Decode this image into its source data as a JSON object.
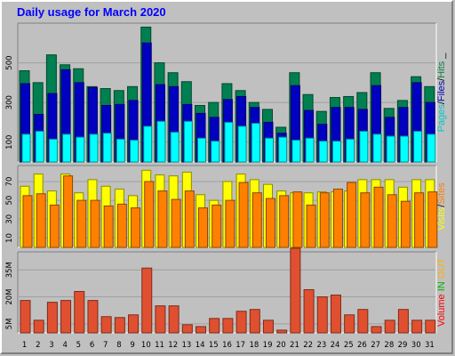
{
  "chart_data": [
    {
      "type": "bar",
      "title": "Daily usage for March 2020",
      "panel": "top",
      "categories": [
        "1",
        "2",
        "3",
        "4",
        "5",
        "6",
        "7",
        "8",
        "9",
        "10",
        "11",
        "12",
        "13",
        "14",
        "15",
        "16",
        "17",
        "18",
        "19",
        "20",
        "21",
        "22",
        "23",
        "24",
        "25",
        "26",
        "27",
        "28",
        "29",
        "30",
        "31"
      ],
      "y_ticks": [
        "100",
        "300",
        "500"
      ],
      "ylim": [
        0,
        700
      ],
      "legend_labels": [
        "Pages",
        "/",
        "Files",
        "/",
        "Hits",
        "_"
      ],
      "legend_colors": [
        "#00c8c8",
        "#000000",
        "#0000c0",
        "#000000",
        "#008040",
        "#000000"
      ],
      "series": [
        {
          "name": "Hits",
          "color": "#008050",
          "values": [
            460,
            400,
            540,
            490,
            470,
            380,
            370,
            360,
            380,
            680,
            500,
            450,
            405,
            285,
            300,
            395,
            360,
            300,
            265,
            175,
            450,
            340,
            255,
            325,
            330,
            350,
            450,
            270,
            310,
            430,
            380
          ]
        },
        {
          "name": "Files",
          "color": "#0000c0",
          "values": [
            395,
            240,
            345,
            465,
            400,
            375,
            285,
            290,
            310,
            600,
            390,
            380,
            290,
            245,
            225,
            315,
            330,
            275,
            200,
            145,
            385,
            260,
            190,
            275,
            275,
            265,
            385,
            225,
            275,
            400,
            300
          ]
        },
        {
          "name": "Pages",
          "color": "#00ffff",
          "values": [
            140,
            155,
            115,
            140,
            125,
            140,
            145,
            115,
            110,
            180,
            205,
            150,
            205,
            120,
            105,
            200,
            180,
            195,
            120,
            125,
            110,
            120,
            105,
            105,
            115,
            155,
            140,
            130,
            130,
            155,
            140
          ]
        }
      ]
    },
    {
      "type": "bar",
      "panel": "middle",
      "categories": [
        "1",
        "2",
        "3",
        "4",
        "5",
        "6",
        "7",
        "8",
        "9",
        "10",
        "11",
        "12",
        "13",
        "14",
        "15",
        "16",
        "17",
        "18",
        "19",
        "20",
        "21",
        "22",
        "23",
        "24",
        "25",
        "26",
        "27",
        "28",
        "29",
        "30",
        "31"
      ],
      "y_ticks": [
        "10",
        "30",
        "50",
        "70"
      ],
      "ylim": [
        0,
        87
      ],
      "legend_labels": [
        "Visits",
        "/",
        "Sites"
      ],
      "legend_colors": [
        "#ffff00",
        "#000000",
        "#ff8000"
      ],
      "series": [
        {
          "name": "Visits",
          "color": "#ffff00",
          "values": [
            65,
            78,
            60,
            78,
            58,
            72,
            65,
            62,
            55,
            82,
            77,
            76,
            80,
            56,
            50,
            70,
            78,
            72,
            67,
            60,
            58,
            58,
            59,
            59,
            60,
            72,
            72,
            72,
            64,
            72,
            72
          ]
        },
        {
          "name": "Sites",
          "color": "#ff8000",
          "values": [
            55,
            57,
            45,
            76,
            50,
            50,
            44,
            46,
            42,
            70,
            60,
            51,
            60,
            42,
            45,
            50,
            69,
            58,
            52,
            55,
            59,
            45,
            58,
            62,
            69,
            58,
            64,
            56,
            49,
            58,
            59
          ]
        }
      ]
    },
    {
      "type": "bar",
      "panel": "bottom",
      "categories": [
        "1",
        "2",
        "3",
        "4",
        "5",
        "6",
        "7",
        "8",
        "9",
        "10",
        "11",
        "12",
        "13",
        "14",
        "15",
        "16",
        "17",
        "18",
        "19",
        "20",
        "21",
        "22",
        "23",
        "24",
        "25",
        "26",
        "27",
        "28",
        "29",
        "30",
        "31"
      ],
      "y_ticks": [
        "5M",
        "20M",
        "35M"
      ],
      "ylim": [
        0,
        45
      ],
      "legend_labels": [
        "Volume",
        "IN",
        "OUT"
      ],
      "legend_colors": [
        "#ff0000",
        "#00b000",
        "#ffb000"
      ],
      "series": [
        {
          "name": "Volume",
          "color": "#e05030",
          "values": [
            18,
            7,
            17,
            18,
            23,
            18,
            9,
            8.5,
            10,
            36,
            15,
            15,
            4.5,
            3.5,
            8,
            8,
            12,
            13,
            7,
            1.5,
            47,
            24,
            20,
            21,
            10,
            13,
            3.5,
            7,
            13,
            7,
            7
          ]
        }
      ],
      "x_label_colors": [
        "#008040",
        "#000000",
        "#000000",
        "#000000",
        "#000000",
        "#000000",
        "#008040",
        "#008040",
        "#000000",
        "#000000",
        "#000000",
        "#000000",
        "#000000",
        "#008040",
        "#008040",
        "#000000",
        "#000000",
        "#000000",
        "#000000",
        "#000000",
        "#008040",
        "#008040",
        "#000000",
        "#000000",
        "#000000",
        "#000000",
        "#000000",
        "#008040",
        "#008040",
        "#000000",
        "#000000"
      ]
    }
  ]
}
